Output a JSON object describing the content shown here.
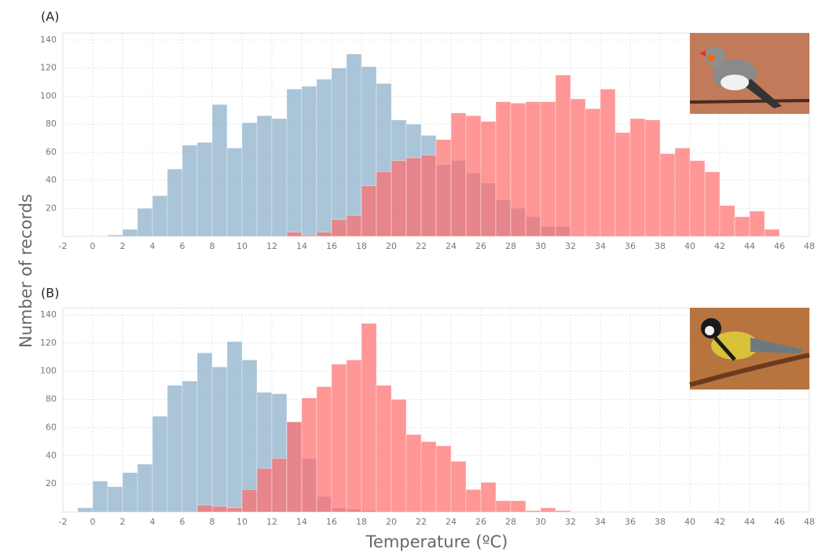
{
  "chart_data": [
    {
      "type": "histogram",
      "title": "(A)",
      "ylabel": "Number of records",
      "bins": [
        -1,
        0,
        1,
        2,
        3,
        4,
        5,
        6,
        7,
        8,
        9,
        10,
        11,
        12,
        13,
        14,
        15,
        16,
        17,
        18,
        19,
        20,
        21,
        22,
        23,
        24,
        25,
        26,
        27,
        28,
        29,
        30,
        31,
        32,
        33,
        34,
        35,
        36,
        37,
        38,
        39,
        40,
        41,
        42,
        43,
        44,
        45,
        46
      ],
      "series": [
        {
          "color": "#86abc8",
          "values": [
            0,
            0,
            1,
            5,
            20,
            29,
            48,
            65,
            67,
            94,
            63,
            81,
            86,
            84,
            105,
            107,
            112,
            120,
            130,
            121,
            109,
            83,
            80,
            72,
            51,
            54,
            45,
            38,
            26,
            20,
            14,
            7,
            7,
            0,
            0,
            0,
            0,
            0,
            0,
            0,
            0,
            0,
            0,
            0,
            0,
            0,
            0
          ]
        },
        {
          "color": "#ff6b6b",
          "values": [
            0,
            0,
            0,
            0,
            0,
            0,
            0,
            0,
            0,
            0,
            0,
            0,
            0,
            0,
            3,
            1,
            3,
            12,
            15,
            36,
            46,
            54,
            56,
            58,
            69,
            88,
            86,
            82,
            96,
            95,
            96,
            96,
            115,
            98,
            91,
            105,
            74,
            84,
            83,
            59,
            63,
            54,
            46,
            22,
            14,
            18,
            5
          ]
        }
      ],
      "xlim": [
        -2,
        48
      ],
      "ylim": [
        0,
        145
      ],
      "xticks": [
        -2,
        0,
        2,
        4,
        6,
        8,
        10,
        12,
        14,
        16,
        18,
        20,
        22,
        24,
        26,
        28,
        30,
        32,
        34,
        36,
        38,
        40,
        42,
        44,
        46,
        48
      ],
      "yticks": [
        20,
        40,
        60,
        80,
        100,
        120,
        140
      ],
      "grid": true
    },
    {
      "type": "histogram",
      "title": "(B)",
      "xlabel": "Temperature (ºC)",
      "bins": [
        -1,
        0,
        1,
        2,
        3,
        4,
        5,
        6,
        7,
        8,
        9,
        10,
        11,
        12,
        13,
        14,
        15,
        16,
        17,
        18,
        19,
        20,
        21,
        22,
        23,
        24,
        25,
        26,
        27,
        28,
        29,
        30,
        31,
        32,
        33,
        34,
        35,
        36,
        37,
        38,
        39,
        40,
        41,
        42,
        43,
        44,
        45,
        46
      ],
      "series": [
        {
          "color": "#86abc8",
          "values": [
            3,
            22,
            18,
            28,
            34,
            68,
            90,
            93,
            113,
            103,
            121,
            108,
            85,
            84,
            64,
            38,
            11,
            3,
            2,
            1,
            0,
            0,
            0,
            0,
            0,
            0,
            0,
            0,
            0,
            0,
            0,
            0,
            0,
            0,
            0,
            0,
            0,
            0,
            0,
            0,
            0,
            0,
            0,
            0,
            0,
            0,
            0
          ]
        },
        {
          "color": "#ff6b6b",
          "values": [
            0,
            0,
            0,
            0,
            0,
            0,
            0,
            0,
            5,
            4,
            3,
            16,
            31,
            38,
            64,
            81,
            89,
            105,
            108,
            134,
            90,
            80,
            55,
            50,
            47,
            36,
            16,
            21,
            8,
            8,
            1,
            3,
            1,
            0,
            0,
            0,
            0,
            0,
            0,
            0,
            0,
            0,
            0,
            0,
            0,
            0,
            0
          ]
        }
      ],
      "xlim": [
        -2,
        48
      ],
      "ylim": [
        0,
        145
      ],
      "xticks": [
        -2,
        0,
        2,
        4,
        6,
        8,
        10,
        12,
        14,
        16,
        18,
        20,
        22,
        24,
        26,
        28,
        30,
        32,
        34,
        36,
        38,
        40,
        42,
        44,
        46,
        48
      ],
      "yticks": [
        20,
        40,
        60,
        80,
        100,
        120,
        140
      ],
      "grid": true
    }
  ]
}
